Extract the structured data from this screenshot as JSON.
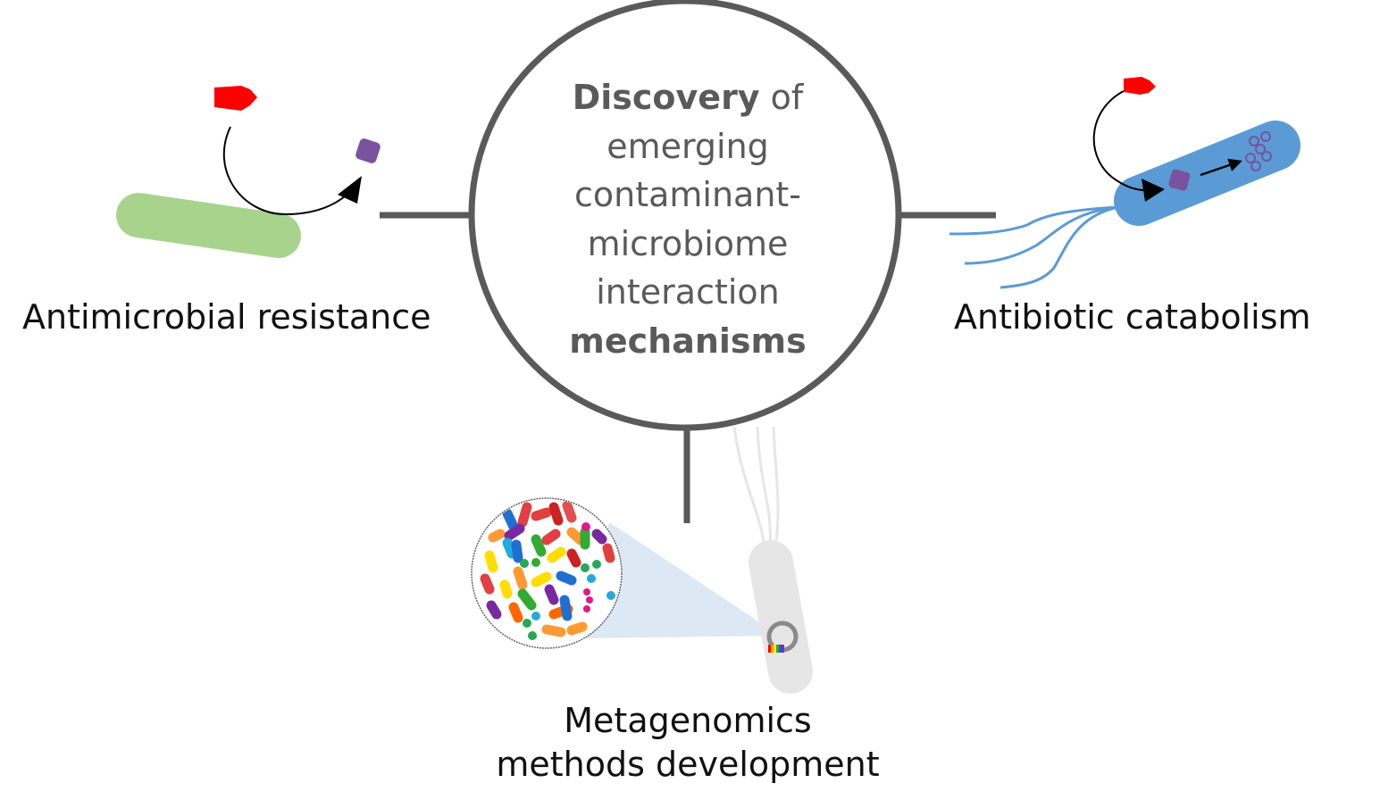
{
  "center": {
    "line1_bold": "Discovery",
    "line1_rest": " of",
    "line2": "emerging",
    "line3": "contaminant-",
    "line4": "microbiome",
    "line5": "interaction",
    "line6_bold": "mechanisms"
  },
  "labels": {
    "antimicrobial_resistance": "Antimicrobial resistance",
    "antibiotic_catabolism": "Antibiotic catabolism",
    "metagenomics_line1": "Metagenomics",
    "metagenomics_line2": "methods development"
  },
  "colors": {
    "hub_stroke": "#5a5a5a",
    "green_bacterium": "#a8d38d",
    "blue_bacterium": "#5b9bd5",
    "gray_bacterium": "#e6e6e6",
    "antibiotic_red": "#ff0000",
    "metabolite_purple": "#7952a0",
    "magnifier_cone": "#dce9f5"
  },
  "icons": {
    "antibiotic": "red-antibiotic-molecule-icon",
    "product": "purple-metabolite-icon",
    "plasmid": "plasmid-ring-icon"
  }
}
